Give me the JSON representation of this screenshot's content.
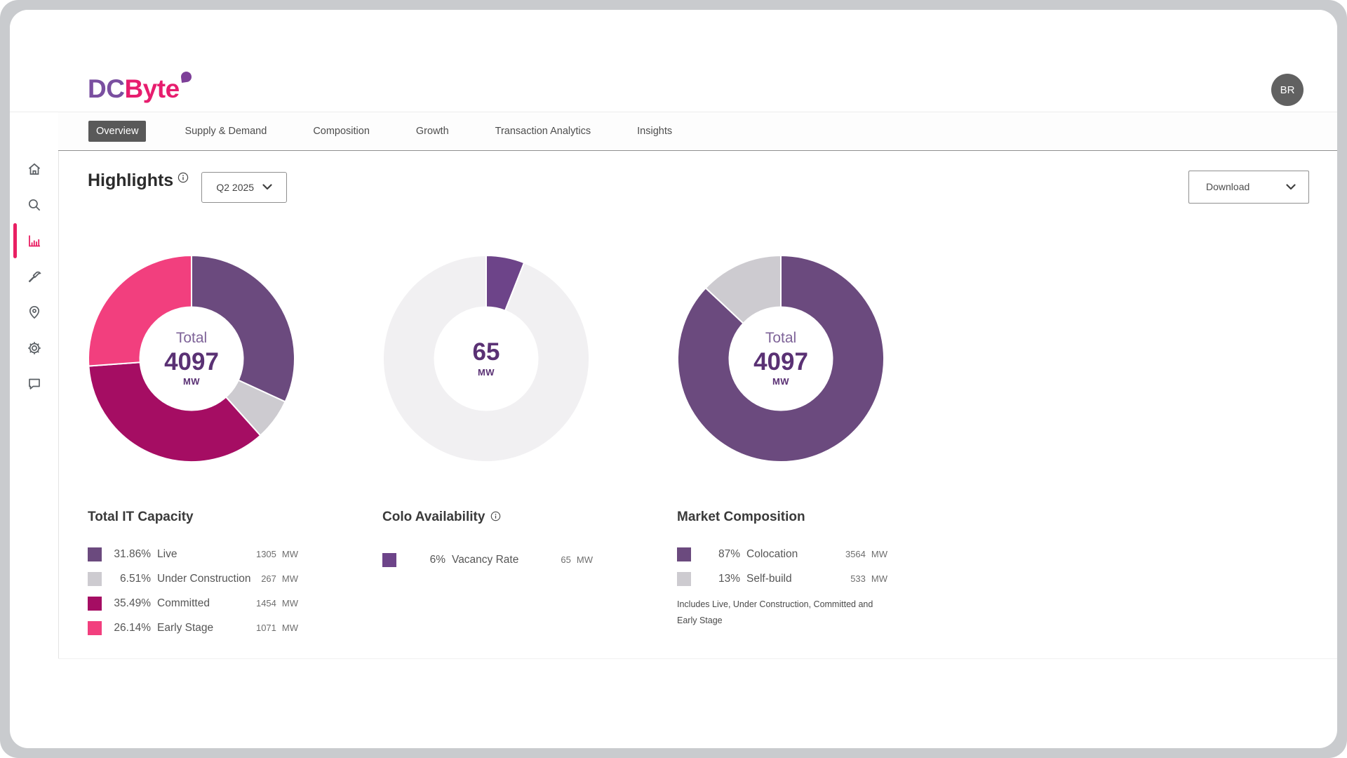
{
  "brand": {
    "primary": "DC",
    "secondary": "Byte",
    "leaf_color": "#7D3F98"
  },
  "header": {
    "avatar_initials": "BR"
  },
  "colors": {
    "accent_pink": "#E91F63",
    "active_tab_bg": "#595959",
    "purple": "#6B4A7E",
    "magenta": "#A50D63",
    "pink": "#F23F7E",
    "gray": "#CDCBD0",
    "ring_bg": "#F1F0F2"
  },
  "sidebar": {
    "icons": [
      "home",
      "search",
      "bar-chart",
      "build",
      "location",
      "settings",
      "feedback"
    ],
    "active_icon": "bar-chart"
  },
  "tabs": [
    {
      "label": "Overview",
      "active": true
    },
    {
      "label": "Supply & Demand",
      "active": false
    },
    {
      "label": "Composition",
      "active": false
    },
    {
      "label": "Growth",
      "active": false
    },
    {
      "label": "Transaction Analytics",
      "active": false
    },
    {
      "label": "Insights",
      "active": false
    }
  ],
  "page": {
    "title": "Highlights",
    "period_value": "Q2 2025",
    "download_label": "Download"
  },
  "chart_data": [
    {
      "id": "total-it-capacity",
      "type": "donut",
      "title": "Total IT Capacity",
      "has_info": false,
      "center": {
        "label": "Total",
        "value": "4097",
        "unit": "MW"
      },
      "segments": [
        {
          "label": "Live",
          "pct": 31.86,
          "pct_label": "31.86%",
          "value": "1305",
          "unit": "MW",
          "color": "#6B4A7E"
        },
        {
          "label": "Under Construction",
          "pct": 6.51,
          "pct_label": "6.51%",
          "value": "267",
          "unit": "MW",
          "color": "#CDCBD0"
        },
        {
          "label": "Committed",
          "pct": 35.49,
          "pct_label": "35.49%",
          "value": "1454",
          "unit": "MW",
          "color": "#A50D63"
        },
        {
          "label": "Early Stage",
          "pct": 26.14,
          "pct_label": "26.14%",
          "value": "1071",
          "unit": "MW",
          "color": "#F23F7E"
        }
      ]
    },
    {
      "id": "colo-availability",
      "type": "donut",
      "title": "Colo Availability",
      "has_info": true,
      "ring_bg": "#F1F0F2",
      "center": {
        "value": "65",
        "unit": "MW"
      },
      "segments": [
        {
          "label": "Vacancy Rate",
          "pct": 6,
          "pct_label": "6%",
          "value": "65",
          "unit": "MW",
          "color": "#6D4489"
        }
      ]
    },
    {
      "id": "market-composition",
      "type": "donut",
      "title": "Market Composition",
      "has_info": false,
      "center": {
        "label": "Total",
        "value": "4097",
        "unit": "MW"
      },
      "footnote": "Includes Live, Under Construction, Committed and Early Stage",
      "segments": [
        {
          "label": "Colocation",
          "pct": 87,
          "pct_label": "87%",
          "value": "3564",
          "unit": "MW",
          "color": "#6B4A7E"
        },
        {
          "label": "Self-build",
          "pct": 13,
          "pct_label": "13%",
          "value": "533",
          "unit": "MW",
          "color": "#CDCBD0"
        }
      ]
    }
  ]
}
